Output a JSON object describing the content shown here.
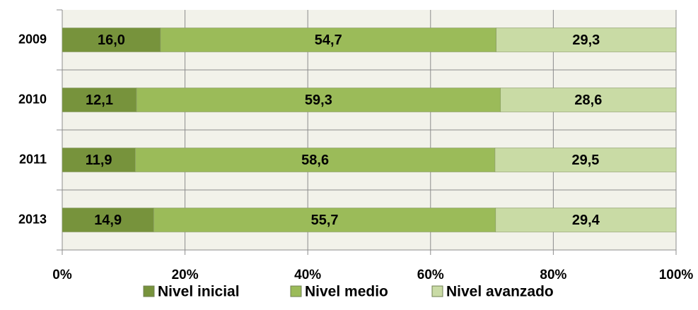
{
  "chart_data": {
    "type": "stacked-barh",
    "categories": [
      "2009",
      "2010",
      "2011",
      "2013"
    ],
    "series": [
      {
        "name": "Nivel inicial",
        "color": "#77933c",
        "values": [
          16.0,
          12.1,
          11.9,
          14.9
        ],
        "value_labels": [
          "16,0",
          "12,1",
          "11,9",
          "14,9"
        ]
      },
      {
        "name": "Nivel medio",
        "color": "#9bbb59",
        "values": [
          54.7,
          59.3,
          58.6,
          55.7
        ],
        "value_labels": [
          "54,7",
          "59,3",
          "58,6",
          "55,7"
        ]
      },
      {
        "name": "Nivel avanzado",
        "color": "#c9dba5",
        "values": [
          29.3,
          28.6,
          29.5,
          29.4
        ],
        "value_labels": [
          "29,3",
          "28,6",
          "29,5",
          "29,4"
        ]
      }
    ],
    "xlim": [
      0,
      100
    ],
    "xticks": [
      {
        "value": 0,
        "label": "0%"
      },
      {
        "value": 20,
        "label": "20%"
      },
      {
        "value": 40,
        "label": "40%"
      },
      {
        "value": 60,
        "label": "60%"
      },
      {
        "value": 80,
        "label": "80%"
      },
      {
        "value": 100,
        "label": "100%"
      }
    ],
    "grid": true,
    "legend": "bottom"
  }
}
